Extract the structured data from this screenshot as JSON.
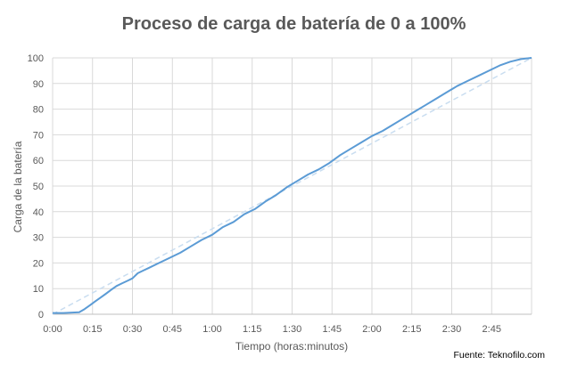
{
  "chart_data": {
    "type": "line",
    "title": "Proceso de carga de batería de 0 a 100%",
    "xlabel": "Tiempo (horas:minutos)",
    "ylabel": "Carga de la batería",
    "x_tick_labels": [
      "0:00",
      "0:15",
      "0:30",
      "0:45",
      "1:00",
      "1:15",
      "1:30",
      "1:45",
      "2:00",
      "2:15",
      "2:30",
      "2:45"
    ],
    "x_range_minutes": [
      0,
      180
    ],
    "y_ticks": [
      0,
      10,
      20,
      30,
      40,
      50,
      60,
      70,
      80,
      90,
      100
    ],
    "ylim": [
      0,
      100
    ],
    "grid": true,
    "legend": "none",
    "source_text": "Fuente: Teknofilo.com",
    "series": [
      {
        "x_minutes": [
          0,
          4,
          10,
          12,
          14,
          16,
          18,
          20,
          22,
          24,
          26,
          28,
          30,
          32,
          34,
          36,
          40,
          44,
          48,
          52,
          56,
          60,
          64,
          68,
          72,
          76,
          80,
          84,
          88,
          92,
          96,
          100,
          104,
          108,
          112,
          116,
          120,
          124,
          128,
          132,
          136,
          140,
          144,
          148,
          152,
          156,
          160,
          164,
          168,
          172,
          176,
          180
        ],
        "values": [
          0.5,
          0.5,
          0.8,
          2,
          3.5,
          5,
          6.5,
          8,
          9.5,
          11,
          12,
          13,
          14,
          16,
          17,
          18,
          20,
          22,
          24,
          26.5,
          29,
          31,
          34,
          36,
          39,
          41,
          44,
          46.5,
          49.5,
          52,
          54.5,
          56.5,
          59,
          62,
          64.5,
          67,
          69.5,
          71.5,
          74,
          76.5,
          79,
          81.5,
          84,
          86.5,
          89,
          91,
          93,
          95,
          97,
          98.5,
          99.5,
          100
        ],
        "color": "#5b9bd5"
      },
      {
        "x_minutes": [
          0,
          180
        ],
        "values": [
          0,
          100
        ],
        "color": "#c9ddf0",
        "style": "dashed"
      }
    ]
  }
}
